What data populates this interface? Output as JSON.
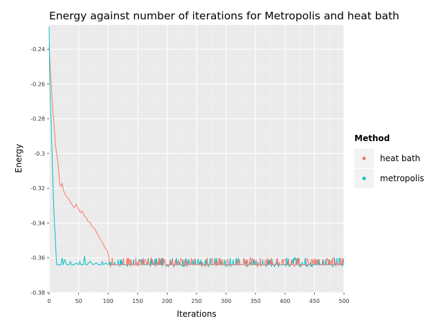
{
  "chart_data": {
    "type": "line",
    "title": "Energy against number of iterations for Metropolis and heat bath",
    "xlabel": "Iterations",
    "ylabel": "Energy",
    "xlim": [
      0,
      500
    ],
    "ylim": [
      -0.38,
      -0.226
    ],
    "x_ticks": [
      0,
      50,
      100,
      150,
      200,
      250,
      300,
      350,
      400,
      450,
      500
    ],
    "y_ticks": [
      -0.38,
      -0.36,
      -0.34,
      -0.32,
      -0.3,
      -0.28,
      -0.26,
      -0.24
    ],
    "y_tick_labels": [
      "-0.38",
      "-0.36",
      "-0.34",
      "-0.32",
      "-0.3",
      "-0.28",
      "-0.26",
      "-0.24"
    ],
    "grid": true,
    "legend": {
      "title": "Method",
      "position": "right",
      "entries": [
        {
          "name": "heat bath",
          "color": "#F8766D"
        },
        {
          "name": "metropolis",
          "color": "#00BFC4"
        }
      ]
    },
    "series": [
      {
        "name": "heat bath",
        "color": "#F8766D",
        "x": [
          0,
          2,
          5,
          8,
          11,
          15,
          18,
          20,
          22,
          25,
          28,
          30,
          33,
          36,
          40,
          43,
          46,
          50,
          53,
          56,
          60,
          63,
          66,
          70,
          73,
          76,
          80,
          83,
          86,
          90,
          93,
          96,
          99,
          101,
          103
        ],
        "values": [
          -0.238,
          -0.252,
          -0.268,
          -0.282,
          -0.296,
          -0.305,
          -0.318,
          -0.319,
          -0.317,
          -0.322,
          -0.324,
          -0.325,
          -0.326,
          -0.328,
          -0.33,
          -0.331,
          -0.329,
          -0.332,
          -0.334,
          -0.333,
          -0.336,
          -0.337,
          -0.339,
          -0.34,
          -0.342,
          -0.343,
          -0.345,
          -0.347,
          -0.349,
          -0.351,
          -0.353,
          -0.355,
          -0.356,
          -0.36,
          -0.364
        ]
      },
      {
        "name": "metropolis",
        "color": "#00BFC4",
        "x": [
          0,
          1,
          2,
          3,
          4,
          5,
          6,
          7,
          8,
          9,
          10,
          11,
          12,
          13,
          15,
          20,
          22,
          24,
          26,
          30,
          34,
          36,
          38,
          42,
          46,
          50,
          52,
          54,
          58,
          60,
          62,
          64,
          70,
          74,
          80,
          84,
          88,
          90,
          92,
          96,
          100
        ],
        "values": [
          -0.227,
          -0.258,
          -0.268,
          -0.278,
          -0.29,
          -0.3,
          -0.312,
          -0.323,
          -0.333,
          -0.34,
          -0.346,
          -0.352,
          -0.36,
          -0.364,
          -0.364,
          -0.364,
          -0.36,
          -0.364,
          -0.361,
          -0.364,
          -0.364,
          -0.362,
          -0.364,
          -0.364,
          -0.363,
          -0.364,
          -0.362,
          -0.364,
          -0.364,
          -0.359,
          -0.364,
          -0.364,
          -0.362,
          -0.364,
          -0.363,
          -0.364,
          -0.364,
          -0.362,
          -0.364,
          -0.363,
          -0.364
        ]
      }
    ]
  }
}
